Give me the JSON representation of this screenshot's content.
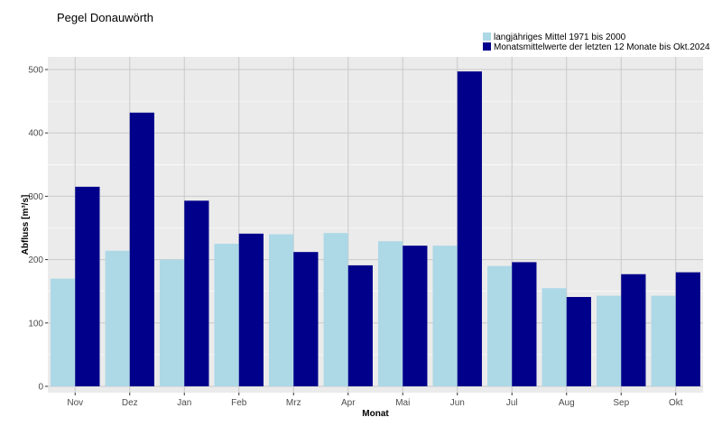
{
  "chart_data": {
    "type": "bar",
    "title": "Pegel Donauwörth",
    "xlabel": "Monat",
    "ylabel": "Abfluss [m³/s]",
    "categories": [
      "Nov",
      "Dez",
      "Jan",
      "Feb",
      "Mrz",
      "Apr",
      "Mai",
      "Jun",
      "Jul",
      "Aug",
      "Sep",
      "Okt"
    ],
    "series": [
      {
        "name": "langjähriges Mittel 1971 bis 2000",
        "color": "#add8e6",
        "values": [
          170,
          214,
          200,
          225,
          240,
          242,
          229,
          222,
          190,
          155,
          143,
          143
        ]
      },
      {
        "name": "Monatsmittelwerte der letzten 12 Monate bis Okt.2024",
        "color": "#00008b",
        "values": [
          315,
          432,
          293,
          241,
          212,
          191,
          222,
          497,
          196,
          141,
          177,
          180
        ]
      }
    ],
    "ylim": [
      -10,
      520
    ],
    "yticks": [
      0,
      100,
      200,
      300,
      400,
      500
    ],
    "grid": true,
    "legend_position": "top-right",
    "panel_color": "#ebebeb",
    "grid_color": "#ffffff"
  }
}
